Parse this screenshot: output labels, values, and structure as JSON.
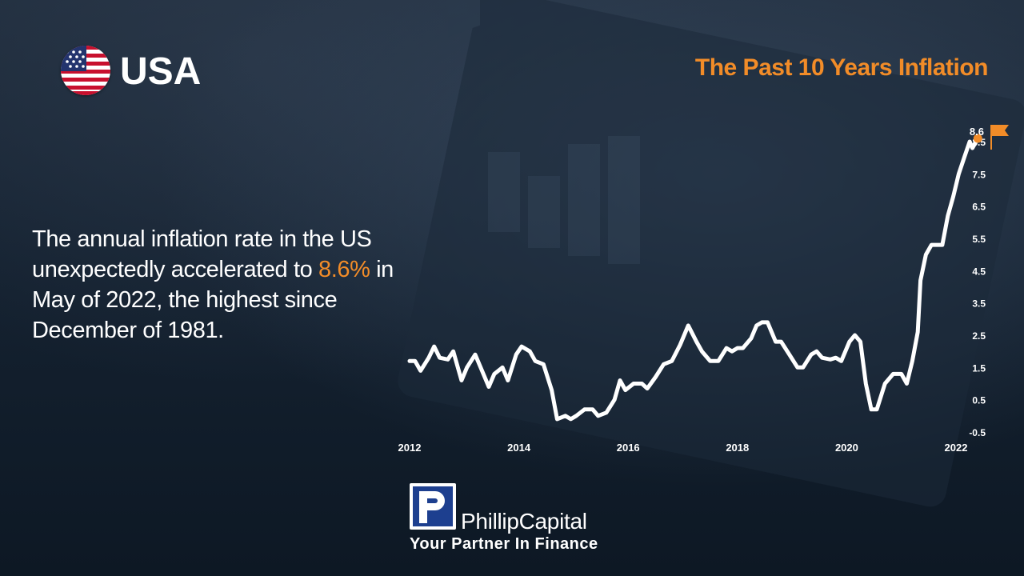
{
  "header": {
    "country": "USA",
    "chart_title": "The Past 10 Years Inflation"
  },
  "headline": {
    "part1": "The annual inflation rate in the US unexpectedly accelerated to ",
    "highlight": "8.6%",
    "part2": " in May of 2022, the highest since December of 1981."
  },
  "brand": {
    "name": "PhillipCapital",
    "tagline": "Your Partner In Finance"
  },
  "colors": {
    "accent": "#f28c28",
    "line": "#ffffff",
    "brand_blue": "#1d3f8f"
  },
  "icons": {
    "flag": "usa-flag-icon",
    "marker": "orange-flag-icon"
  },
  "chart_data": {
    "type": "line",
    "title": "The Past 10 Years Inflation",
    "xlabel": "",
    "ylabel": "",
    "x_ticks": [
      "2012",
      "2014",
      "2016",
      "2018",
      "2020",
      "2022"
    ],
    "y_ticks": [
      -0.5,
      0.5,
      1.5,
      2.5,
      3.5,
      4.5,
      5.5,
      6.5,
      7.5,
      8.5
    ],
    "ylim": [
      -0.5,
      8.6
    ],
    "xlim": [
      2012,
      2022.4
    ],
    "grid": false,
    "series": [
      {
        "name": "",
        "points": [
          [
            2012.0,
            1.7
          ],
          [
            2012.1,
            1.7
          ],
          [
            2012.2,
            1.4
          ],
          [
            2012.35,
            1.8
          ],
          [
            2012.45,
            2.15
          ],
          [
            2012.55,
            1.8
          ],
          [
            2012.7,
            1.75
          ],
          [
            2012.8,
            2.0
          ],
          [
            2012.95,
            1.1
          ],
          [
            2013.05,
            1.5
          ],
          [
            2013.2,
            1.9
          ],
          [
            2013.3,
            1.5
          ],
          [
            2013.45,
            0.9
          ],
          [
            2013.55,
            1.3
          ],
          [
            2013.7,
            1.5
          ],
          [
            2013.8,
            1.1
          ],
          [
            2013.95,
            1.9
          ],
          [
            2014.05,
            2.15
          ],
          [
            2014.2,
            2.0
          ],
          [
            2014.3,
            1.7
          ],
          [
            2014.45,
            1.6
          ],
          [
            2014.6,
            0.8
          ],
          [
            2014.7,
            -0.1
          ],
          [
            2014.85,
            0.0
          ],
          [
            2014.95,
            -0.1
          ],
          [
            2015.05,
            0.0
          ],
          [
            2015.2,
            0.2
          ],
          [
            2015.35,
            0.2
          ],
          [
            2015.45,
            0.0
          ],
          [
            2015.6,
            0.1
          ],
          [
            2015.75,
            0.5
          ],
          [
            2015.85,
            1.1
          ],
          [
            2015.95,
            0.8
          ],
          [
            2016.1,
            1.0
          ],
          [
            2016.25,
            1.0
          ],
          [
            2016.35,
            0.85
          ],
          [
            2016.5,
            1.2
          ],
          [
            2016.65,
            1.6
          ],
          [
            2016.8,
            1.7
          ],
          [
            2016.95,
            2.2
          ],
          [
            2017.1,
            2.8
          ],
          [
            2017.25,
            2.3
          ],
          [
            2017.35,
            2.0
          ],
          [
            2017.5,
            1.7
          ],
          [
            2017.65,
            1.7
          ],
          [
            2017.8,
            2.1
          ],
          [
            2017.9,
            2.0
          ],
          [
            2018.0,
            2.1
          ],
          [
            2018.1,
            2.1
          ],
          [
            2018.25,
            2.4
          ],
          [
            2018.35,
            2.8
          ],
          [
            2018.45,
            2.9
          ],
          [
            2018.55,
            2.9
          ],
          [
            2018.7,
            2.3
          ],
          [
            2018.8,
            2.3
          ],
          [
            2018.95,
            1.9
          ],
          [
            2019.1,
            1.5
          ],
          [
            2019.2,
            1.5
          ],
          [
            2019.35,
            1.9
          ],
          [
            2019.45,
            2.0
          ],
          [
            2019.55,
            1.8
          ],
          [
            2019.7,
            1.75
          ],
          [
            2019.8,
            1.8
          ],
          [
            2019.9,
            1.7
          ],
          [
            2020.05,
            2.3
          ],
          [
            2020.15,
            2.5
          ],
          [
            2020.25,
            2.3
          ],
          [
            2020.35,
            1.0
          ],
          [
            2020.45,
            0.2
          ],
          [
            2020.55,
            0.2
          ],
          [
            2020.7,
            1.0
          ],
          [
            2020.85,
            1.3
          ],
          [
            2021.0,
            1.3
          ],
          [
            2021.1,
            1.0
          ],
          [
            2021.2,
            1.7
          ],
          [
            2021.3,
            2.6
          ],
          [
            2021.35,
            4.2
          ],
          [
            2021.45,
            5.0
          ],
          [
            2021.55,
            5.3
          ],
          [
            2021.65,
            5.3
          ],
          [
            2021.75,
            5.3
          ],
          [
            2021.85,
            6.2
          ],
          [
            2021.95,
            6.8
          ],
          [
            2022.05,
            7.5
          ],
          [
            2022.15,
            8.0
          ],
          [
            2022.25,
            8.5
          ],
          [
            2022.3,
            8.3
          ],
          [
            2022.4,
            8.6
          ]
        ]
      }
    ],
    "annotations": [
      {
        "x": 2022.4,
        "y": 8.6,
        "label": "8.6"
      }
    ]
  }
}
